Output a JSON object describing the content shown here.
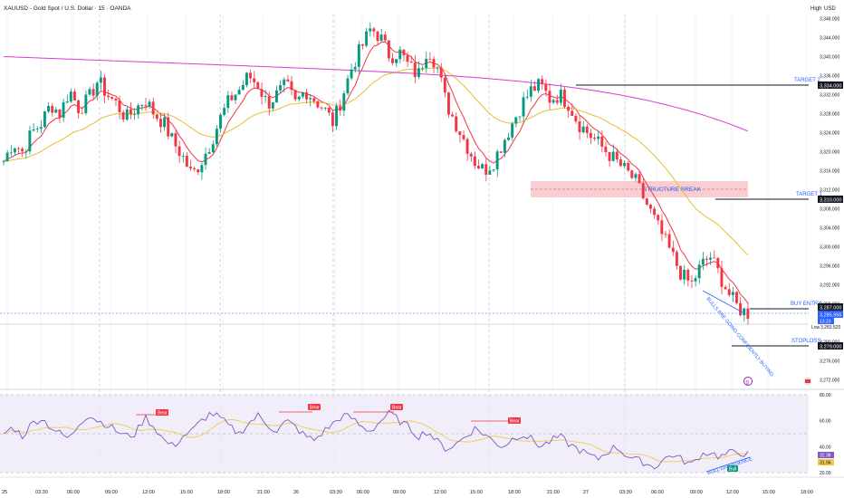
{
  "header": {
    "title": "XAUUSD - Gold Spot / U.S. Dollar · 15 · OANDA",
    "high_label": "High",
    "currency": "USD"
  },
  "colors": {
    "up": "#089981",
    "down": "#f23645",
    "ema_fast": "#f23645",
    "ema_mid": "#e5c12a",
    "ema_slow": "#d63bd0",
    "rsi_line": "#7e57c2",
    "rsi_ma": "#f2c94c",
    "zone": "#f7c5cb",
    "rsi_bg": "#ede7f6",
    "accent": "#2962ff"
  },
  "price_axis": {
    "ticks": [
      "3,348.000",
      "3,344.000",
      "3,340.000",
      "3,336.000",
      "3,332.000",
      "3,328.000",
      "3,324.000",
      "3,320.000",
      "3,316.000",
      "3,312.000",
      "3,308.000",
      "3,304.000",
      "3,300.000",
      "3,296.000",
      "3,292.000",
      "3,288.000",
      "3,280.000",
      "3,276.000",
      "3,272.000"
    ],
    "tick_values": [
      3348,
      3344,
      3340,
      3336,
      3332,
      3328,
      3324,
      3320,
      3316,
      3312,
      3308,
      3304,
      3300,
      3296,
      3292,
      3288,
      3280,
      3276,
      3272
    ]
  },
  "rsi_axis": {
    "ticks": [
      "80.00",
      "60.00",
      "40.00",
      "20.00"
    ],
    "tick_values": [
      80,
      60,
      40,
      20
    ]
  },
  "time_axis": {
    "labels": [
      "25",
      "03:30",
      "06:00",
      "09:00",
      "12:00",
      "15:00",
      "18:00",
      "21:00",
      "26",
      "03:30",
      "06:00",
      "09:00",
      "12:00",
      "15:00",
      "18:00",
      "21:00",
      "27",
      "03:30",
      "06:00",
      "09:00",
      "12:00",
      "15:00",
      "18:00"
    ]
  },
  "annotations": {
    "target2": {
      "label": "TARGET 2",
      "price_tag": "3,334.000",
      "value": 3334
    },
    "target1": {
      "label": "TARGET 1",
      "price_tag": "3,310.000",
      "value": 3310
    },
    "buy_entry": {
      "label": "BUY ENTRY",
      "price_tag": "3,287.000",
      "value": 3287
    },
    "stoploss": {
      "label": "STOPLOSS",
      "price_tag": "3,279.000",
      "value": 3279
    },
    "structure_break": "STRUCTURE BREAK",
    "bulls_text": "BULLS ARE GOING CONFIDENTLY BUYING",
    "bull_divergence": "BULL DIVERGENCE",
    "current_price": "3,285.955",
    "countdown": "13:23",
    "low_label": "Low",
    "low_value": "3,283.520",
    "rsi_values": [
      "32.38",
      "31.94"
    ],
    "bear_labels": [
      "Bear",
      "Bear",
      "Bear",
      "Bear"
    ],
    "bull_label": "Bull"
  },
  "chart_data": {
    "type": "candlestick",
    "title": "XAUUSD - Gold Spot / U.S. Dollar · 15 · OANDA",
    "ylim": [
      3270,
      3350
    ],
    "close_path": [
      3318,
      3322,
      3320,
      3324,
      3326,
      3330,
      3328,
      3333,
      3329,
      3331,
      3335,
      3332,
      3330,
      3327,
      3329,
      3331,
      3328,
      3326,
      3322,
      3319,
      3315,
      3318,
      3322,
      3327,
      3331,
      3333,
      3336,
      3334,
      3330,
      3332,
      3334,
      3330,
      3333,
      3331,
      3329,
      3326,
      3332,
      3338,
      3342,
      3346,
      3344,
      3340,
      3341,
      3338,
      3336,
      3342,
      3338,
      3330,
      3326,
      3322,
      3318,
      3316,
      3318,
      3322,
      3326,
      3330,
      3333,
      3334,
      3331,
      3332,
      3330,
      3326,
      3324,
      3322,
      3320,
      3318,
      3316,
      3314,
      3310,
      3306,
      3302,
      3298,
      3294,
      3292,
      3296,
      3298,
      3294,
      3290,
      3287,
      3286
    ],
    "rsi_path": [
      50,
      55,
      48,
      58,
      62,
      55,
      50,
      46,
      58,
      65,
      60,
      57,
      52,
      48,
      50,
      63,
      55,
      45,
      40,
      48,
      52,
      60,
      66,
      62,
      55,
      50,
      58,
      64,
      57,
      52,
      60,
      55,
      48,
      45,
      52,
      58,
      64,
      62,
      55,
      52,
      60,
      66,
      60,
      55,
      48,
      52,
      44,
      38,
      42,
      48,
      54,
      50,
      44,
      40,
      46,
      50,
      46,
      40,
      44,
      48,
      42,
      38,
      34,
      30,
      36,
      40,
      34,
      30,
      28,
      24,
      30,
      34,
      30,
      26,
      34,
      36,
      32,
      35,
      36,
      34
    ]
  }
}
